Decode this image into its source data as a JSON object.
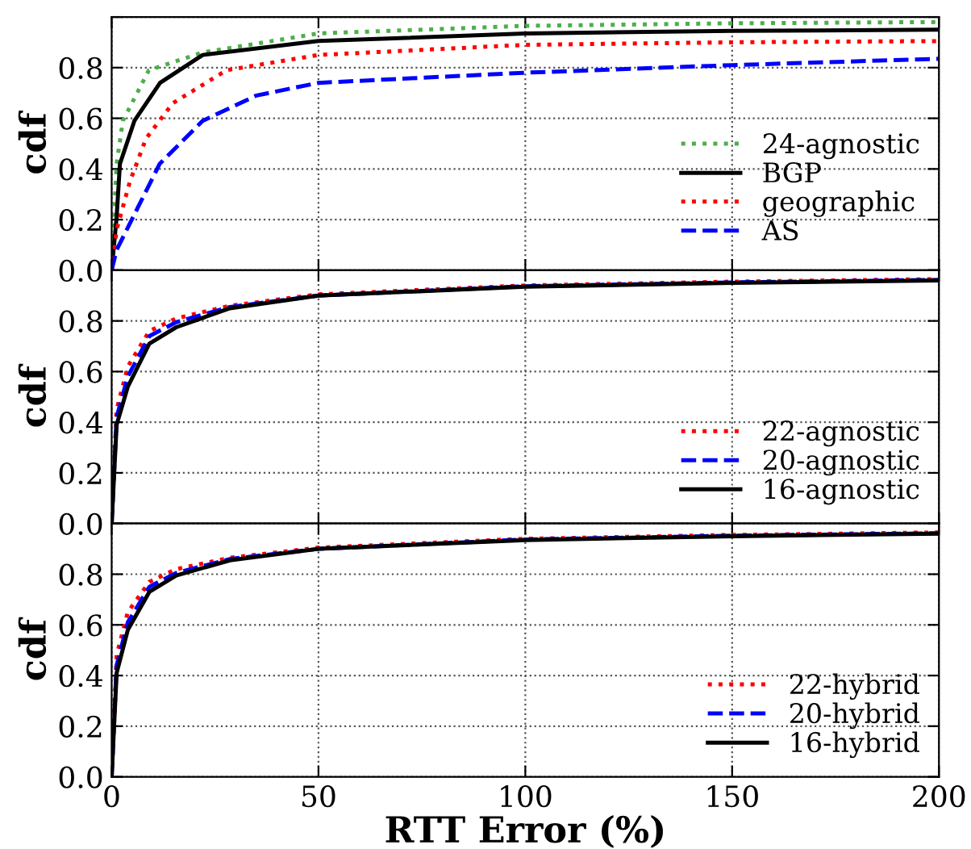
{
  "chart_data": [
    {
      "type": "line",
      "ylabel": "cdf",
      "xlim": [
        0,
        200
      ],
      "ylim": [
        0,
        1
      ],
      "xticks": [
        0,
        50,
        100,
        150,
        200
      ],
      "yticks": [
        {
          "value": 0,
          "label": "0.0"
        },
        {
          "value": 0.2,
          "label": "0.2"
        },
        {
          "value": 0.4,
          "label": "0.4"
        },
        {
          "value": 0.6,
          "label": "0.6"
        },
        {
          "value": 0.8,
          "label": "0.8"
        },
        {
          "value": 1.0,
          "label": null
        }
      ],
      "tick_labels": "y",
      "grid": true,
      "legend": "right",
      "series": [
        {
          "name": "24-agnostic",
          "color": "#4daf4a",
          "line_style": "dotted",
          "x": [
            0,
            1.2,
            2.7,
            9,
            22,
            50,
            100,
            150,
            200
          ],
          "values": [
            0,
            0.42,
            0.59,
            0.79,
            0.86,
            0.935,
            0.965,
            0.975,
            0.98
          ]
        },
        {
          "name": "BGP",
          "color": "#000000",
          "line_style": "solid",
          "x": [
            0,
            1.2,
            2,
            5.5,
            11.7,
            22,
            50,
            100,
            150,
            200
          ],
          "values": [
            0,
            0.21,
            0.42,
            0.59,
            0.74,
            0.85,
            0.905,
            0.935,
            0.945,
            0.95
          ]
        },
        {
          "name": "geographic",
          "color": "#ff0000",
          "line_style": "dotted",
          "x": [
            0,
            1.2,
            4.4,
            8.3,
            14.8,
            27.8,
            50,
            100,
            150,
            200
          ],
          "values": [
            0,
            0.16,
            0.35,
            0.52,
            0.66,
            0.79,
            0.85,
            0.89,
            0.9,
            0.905
          ]
        },
        {
          "name": "AS",
          "color": "#0000ff",
          "line_style": "dashed",
          "x": [
            0,
            1.2,
            6.4,
            11.6,
            22,
            35,
            50,
            100,
            150,
            200
          ],
          "values": [
            0,
            0.08,
            0.25,
            0.42,
            0.59,
            0.69,
            0.74,
            0.78,
            0.81,
            0.835
          ]
        }
      ]
    },
    {
      "type": "line",
      "ylabel": "cdf",
      "xlim": [
        0,
        200
      ],
      "ylim": [
        0,
        1
      ],
      "xticks": [
        0,
        50,
        100,
        150,
        200
      ],
      "yticks": [
        {
          "value": 0,
          "label": "0.0"
        },
        {
          "value": 0.2,
          "label": "0.2"
        },
        {
          "value": 0.4,
          "label": "0.4"
        },
        {
          "value": 0.6,
          "label": "0.6"
        },
        {
          "value": 0.8,
          "label": "0.8"
        },
        {
          "value": 1.0,
          "label": null
        }
      ],
      "tick_labels": "y",
      "grid": true,
      "legend": "lower right",
      "series": [
        {
          "name": "22-agnostic",
          "color": "#ff0000",
          "line_style": "dotted",
          "x": [
            0,
            1.2,
            3.9,
            9.1,
            15.6,
            28.6,
            50,
            100,
            150,
            200
          ],
          "values": [
            0,
            0.45,
            0.62,
            0.76,
            0.81,
            0.86,
            0.905,
            0.94,
            0.955,
            0.965
          ]
        },
        {
          "name": "20-agnostic",
          "color": "#0000ff",
          "line_style": "dashed",
          "x": [
            0,
            1.2,
            3.9,
            9.1,
            15.6,
            28.6,
            50,
            100,
            150,
            200
          ],
          "values": [
            0,
            0.42,
            0.58,
            0.74,
            0.795,
            0.855,
            0.9,
            0.937,
            0.952,
            0.962
          ]
        },
        {
          "name": "16-agnostic",
          "color": "#000000",
          "line_style": "solid",
          "x": [
            0,
            1.2,
            3.9,
            9.1,
            15.6,
            28.6,
            50,
            100,
            150,
            200
          ],
          "values": [
            0,
            0.39,
            0.54,
            0.71,
            0.775,
            0.85,
            0.9,
            0.935,
            0.95,
            0.96
          ]
        }
      ]
    },
    {
      "type": "line",
      "ylabel": "cdf",
      "xlabel": "RTT Error (%)",
      "xlim": [
        0,
        200
      ],
      "ylim": [
        0,
        1
      ],
      "xticks": [
        0,
        50,
        100,
        150,
        200
      ],
      "yticks": [
        {
          "value": 0,
          "label": "0.0"
        },
        {
          "value": 0.2,
          "label": "0.2"
        },
        {
          "value": 0.4,
          "label": "0.4"
        },
        {
          "value": 0.6,
          "label": "0.6"
        },
        {
          "value": 0.8,
          "label": "0.8"
        },
        {
          "value": 1.0,
          "label": null
        }
      ],
      "grid": true,
      "legend": "lower right",
      "series": [
        {
          "name": "22-hybrid",
          "color": "#ff0000",
          "line_style": "dotted",
          "x": [
            0,
            1.2,
            3.9,
            9.1,
            15.6,
            28.6,
            50,
            100,
            150,
            200
          ],
          "values": [
            0,
            0.48,
            0.65,
            0.77,
            0.82,
            0.865,
            0.905,
            0.94,
            0.955,
            0.965
          ]
        },
        {
          "name": "20-hybrid",
          "color": "#0000ff",
          "line_style": "dashed",
          "x": [
            0,
            1.2,
            3.9,
            9.1,
            15.6,
            28.6,
            50,
            100,
            150,
            200
          ],
          "values": [
            0,
            0.44,
            0.61,
            0.75,
            0.805,
            0.86,
            0.9,
            0.937,
            0.952,
            0.962
          ]
        },
        {
          "name": "16-hybrid",
          "color": "#000000",
          "line_style": "solid",
          "x": [
            0,
            1.2,
            3.9,
            9.1,
            15.6,
            28.6,
            50,
            100,
            150,
            200
          ],
          "values": [
            0,
            0.41,
            0.58,
            0.73,
            0.795,
            0.855,
            0.9,
            0.935,
            0.95,
            0.96
          ]
        }
      ]
    }
  ]
}
